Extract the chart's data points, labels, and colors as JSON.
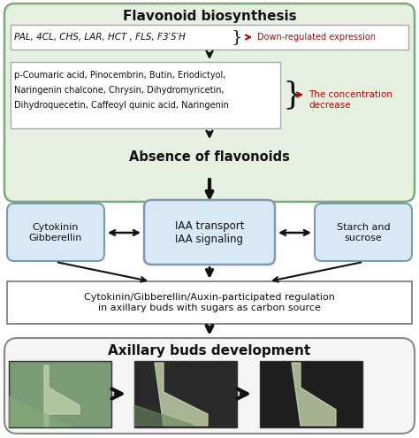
{
  "title": "Flavonoid biosynthesis",
  "genes_text": "PAL, 4CL, CHS, LAR, HCT , FLS, F3′5′H",
  "down_reg_label": "Down-regulated expression",
  "metabolites_line1": "p-Coumaric acid, Pinocembrin, Butin, Eriodictyol,",
  "metabolites_line2": "Naringenin chalcone, Chrysin, Dihydromyricetin,",
  "metabolites_line3": "Dihydroquecetin, Caffeoyl quinic acid, Naringenin",
  "conc_decrease_text": "The concentration\ndecrease",
  "absence_text": "Absence of flavonoids",
  "box1_text": "Cytokinin\nGibberellin",
  "box2_text": "IAA transport\nIAA signaling",
  "box3_text": "Starch and\nsucrose",
  "regulation_text": "Cytokinin/Gibberellin/Auxin-participated regulation\nin axillary buds with sugars as carbon source",
  "axillary_title": "Axillary buds development",
  "bg_top_color": "#e6f0e0",
  "bg_mid_color": "#ddeaf5",
  "bg_bot_color": "#f0f0f0",
  "box_fill_color": "#d8e8f5",
  "box_border_color": "#7a9ab8",
  "top_border_color": "#7aaa7a",
  "mid_border_color": "#7a9ab8",
  "bot_border_color": "#888888",
  "white_box_color": "#ffffff",
  "arrow_color": "#111111",
  "red_color": "#cc0000",
  "text_color": "#111111",
  "title_fontsize": 11,
  "body_fontsize": 7.5,
  "label_fontsize": 9,
  "img1_color": "#6a8a70",
  "img2_color": "#3a4a3a",
  "img3_color": "#3a4a3a"
}
